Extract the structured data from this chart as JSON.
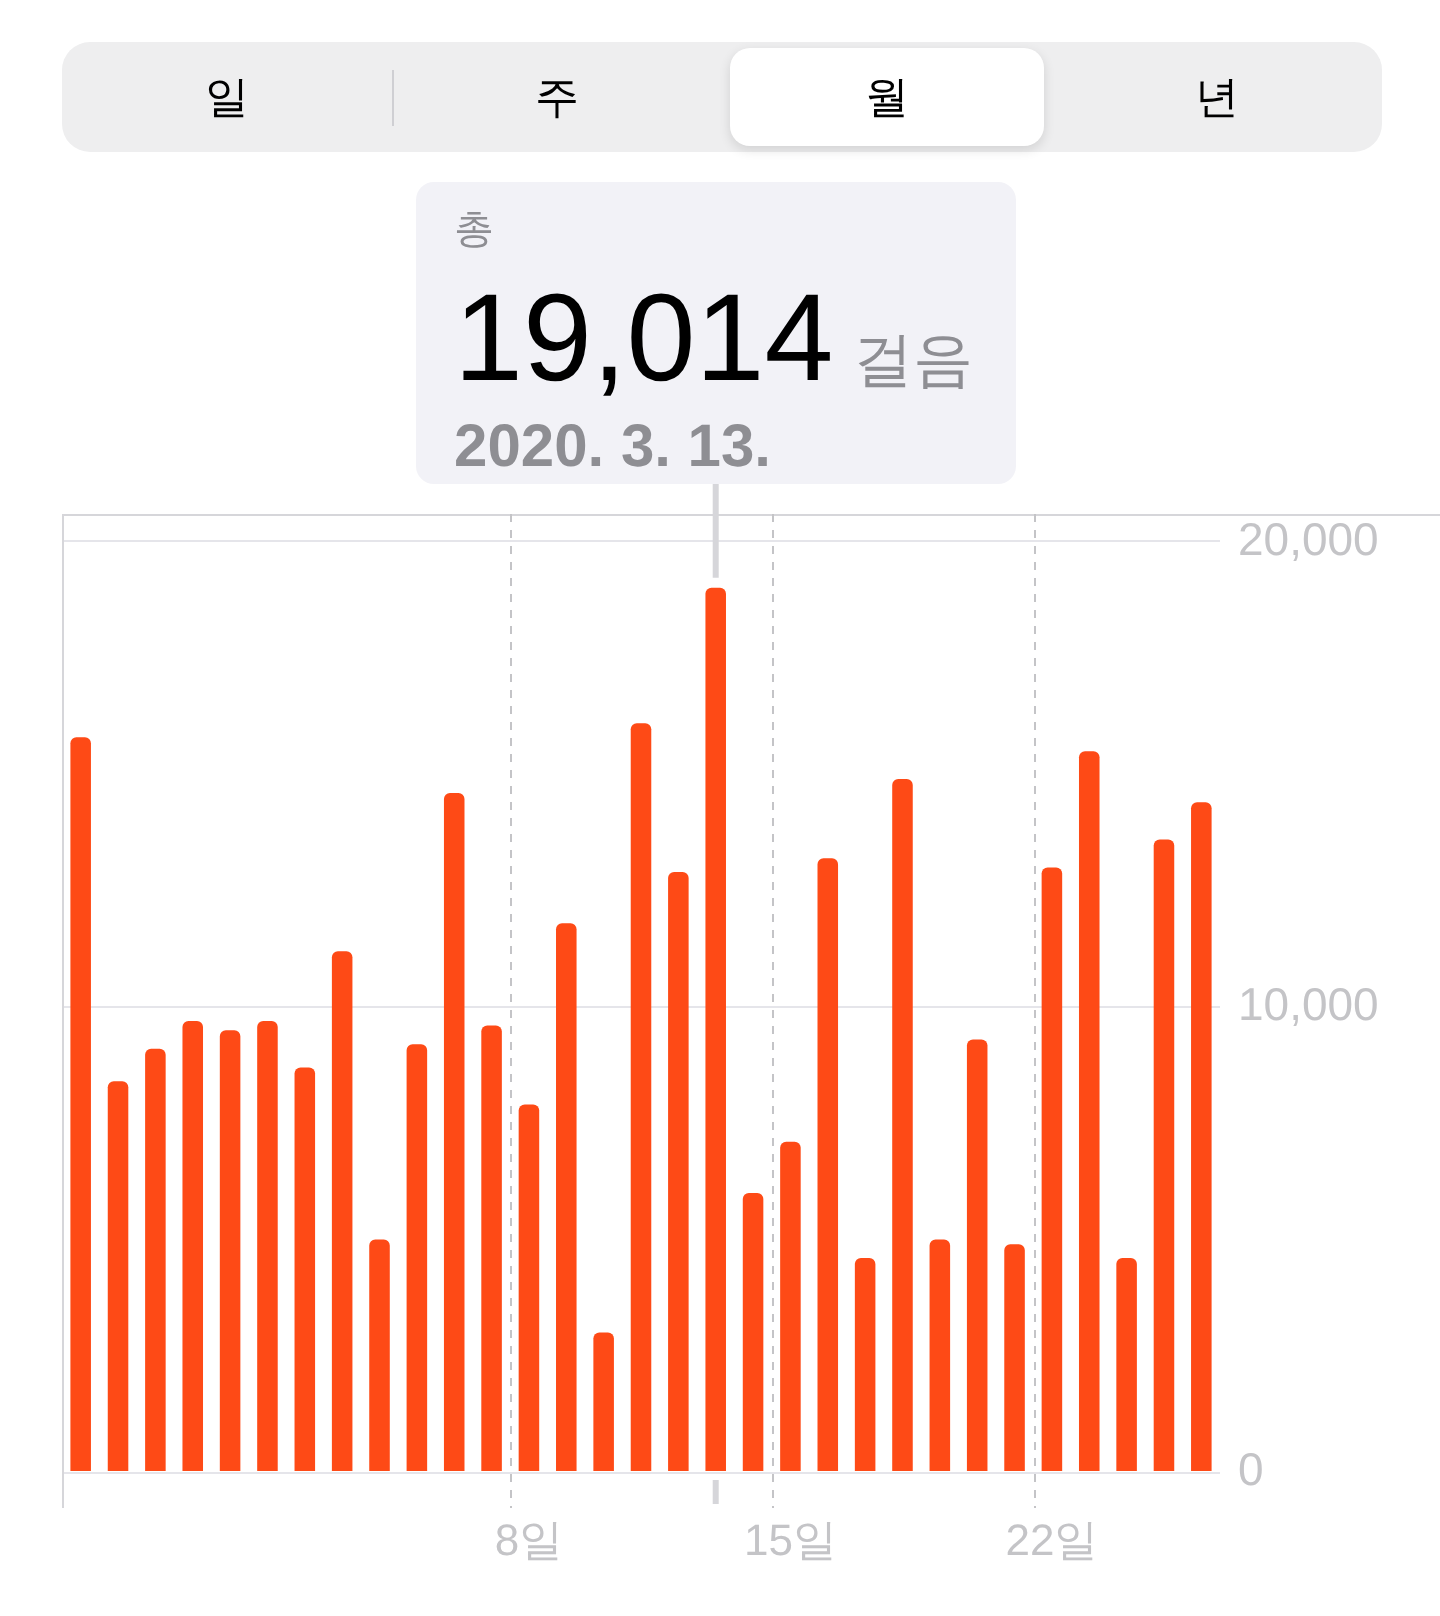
{
  "chart_data": {
    "type": "bar",
    "categories": [
      null,
      null,
      null,
      null,
      null,
      null,
      null,
      null,
      null,
      null,
      null,
      null,
      "8일",
      null,
      null,
      null,
      null,
      null,
      null,
      "15일",
      null,
      null,
      null,
      null,
      null,
      null,
      "22일",
      null,
      null,
      null,
      null
    ],
    "values": [
      15800,
      8400,
      9100,
      9700,
      9500,
      9700,
      8700,
      11200,
      5000,
      9200,
      14600,
      9600,
      7900,
      11800,
      3000,
      16100,
      12900,
      19014,
      6000,
      7100,
      13200,
      4600,
      14900,
      5000,
      9300,
      4900,
      13000,
      15500,
      4600,
      13600,
      14400
    ],
    "color": "#fe4a16",
    "value_labels": [
      null,
      null,
      null,
      null,
      null,
      null,
      null,
      null,
      null,
      null,
      null,
      null,
      null,
      null,
      null,
      null,
      null,
      "19,014",
      null,
      null,
      null,
      null,
      null,
      null,
      null,
      null,
      null,
      null,
      null,
      null,
      null
    ],
    "annotations": [
      "일",
      "주",
      "월",
      "년",
      "총",
      "걸음",
      "2020. 3. 13."
    ],
    "ylim": [
      0,
      20600
    ],
    "yticks": [
      0,
      {
        "value": 10000,
        "label": "10,000"
      },
      {
        "value": 20000,
        "label": "20,000"
      }
    ],
    "grid": true
  }
}
